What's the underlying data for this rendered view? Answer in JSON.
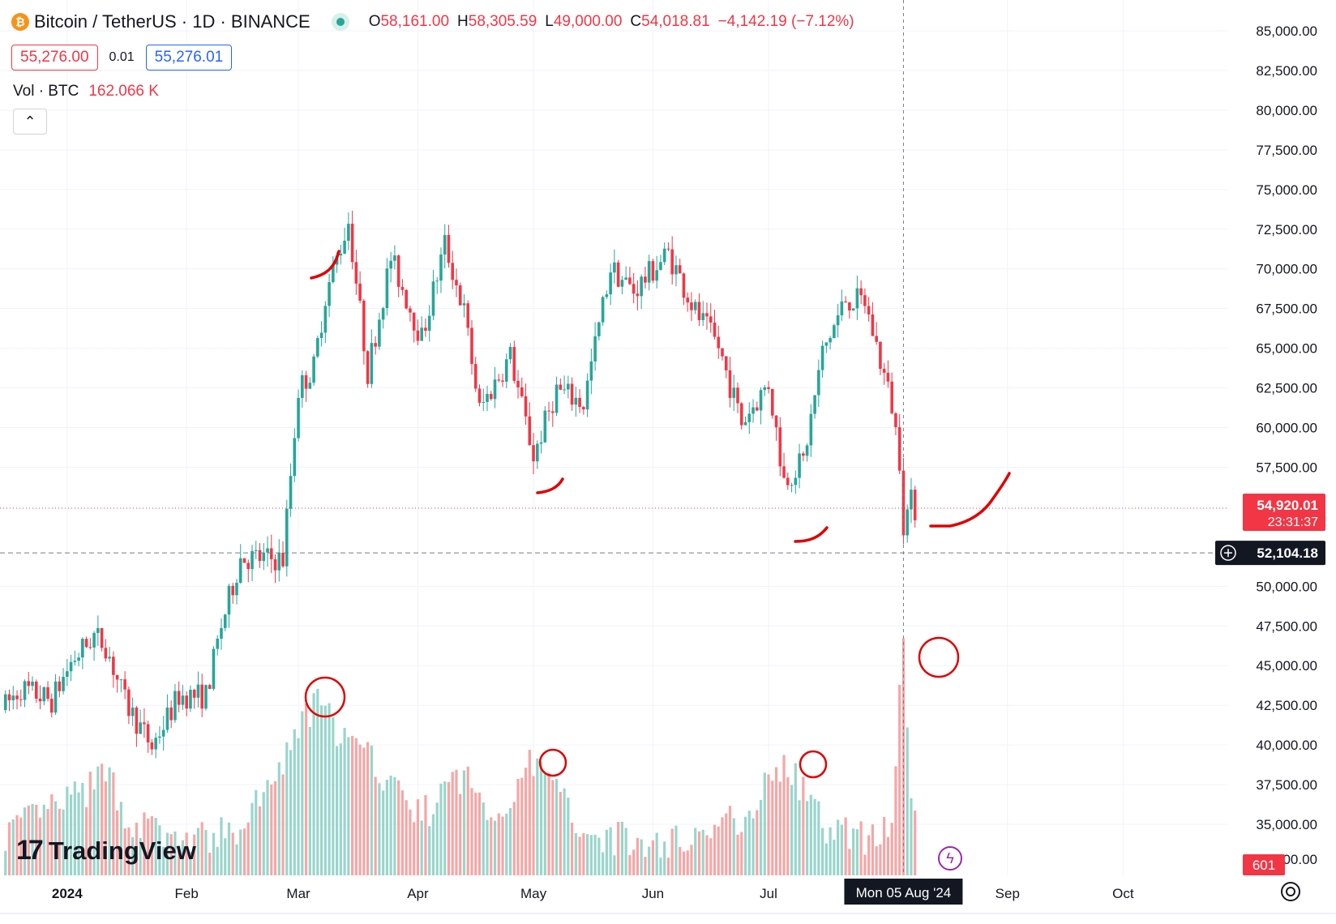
{
  "header": {
    "symbol_title": "Bitcoin / TetherUS · 1D · BINANCE",
    "open_key": "O",
    "open": "58,161.00",
    "high_key": "H",
    "high": "58,305.59",
    "low_key": "L",
    "low": "49,000.00",
    "close_key": "C",
    "close": "54,018.81",
    "change": "−4,142.19 (−7.12%)",
    "sell_price": "55,276.00",
    "spread": "0.01",
    "buy_price": "55,276.01",
    "volume_label": "Vol · BTC",
    "volume_value": "162.066 K",
    "collapse_glyph": "⌃"
  },
  "logo": {
    "mark": "17",
    "name": "TradingView"
  },
  "icons": {
    "coin": "bitcoin-icon",
    "settings": "gear-icon",
    "alert": "lightning-icon",
    "crosshair": "plus-circle-icon"
  },
  "colors": {
    "up": "#26a69a",
    "down": "#f23645",
    "volume_up": "#9ad5cc",
    "volume_down": "#f6a6a6",
    "annotation": "#e00000",
    "grid": "#f0f3fa"
  },
  "chart_data": {
    "type": "candlestick",
    "y_axis": {
      "range": [
        32500,
        85000
      ],
      "ticks": [
        35000,
        37500,
        40000,
        42500,
        45000,
        47500,
        50000,
        57500,
        60000,
        62500,
        65000,
        67500,
        70000,
        72500,
        75000,
        77500,
        80000,
        82500,
        85000
      ],
      "tick_labels": [
        "35,000.00",
        "37,500.00",
        "40,000.00",
        "42,500.00",
        "45,000.00",
        "47,500.00",
        "50,000.00",
        "57,500.00",
        "60,000.00",
        "62,500.00",
        "65,000.00",
        "67,500.00",
        "70,000.00",
        "72,500.00",
        "75,000.00",
        "77,500.00",
        "80,000.00",
        "82,500.00",
        "85,000.00"
      ],
      "partial_bottom_label": "00.00"
    },
    "x_axis": {
      "start": "2023-12-15",
      "end": "2024-10-20",
      "ticks": [
        {
          "date": "2024-01-01",
          "label": "2024"
        },
        {
          "date": "2024-02-01",
          "label": "Feb"
        },
        {
          "date": "2024-03-01",
          "label": "Mar"
        },
        {
          "date": "2024-04-01",
          "label": "Apr"
        },
        {
          "date": "2024-05-01",
          "label": "May"
        },
        {
          "date": "2024-06-01",
          "label": "Jun"
        },
        {
          "date": "2024-07-01",
          "label": "Jul"
        },
        {
          "date": "2024-09-01",
          "label": "Sep"
        },
        {
          "date": "2024-10-01",
          "label": "Oct"
        }
      ],
      "crosshair_date": "2024-08-05",
      "crosshair_label": "Mon 05 Aug '24"
    },
    "price_tags": {
      "last_price": 54920.01,
      "last_price_label": "54,920.01",
      "countdown": "23:31:37",
      "crosshair_price": 52104.18,
      "crosshair_price_label": "52,104.18",
      "volume_tag": "601"
    },
    "close_path": [
      [
        "2023-12-15",
        42200
      ],
      [
        "2023-12-20",
        43600
      ],
      [
        "2023-12-28",
        42800
      ],
      [
        "2024-01-02",
        45200
      ],
      [
        "2024-01-08",
        46900
      ],
      [
        "2024-01-11",
        46300
      ],
      [
        "2024-01-16",
        42700
      ],
      [
        "2024-01-23",
        39900
      ],
      [
        "2024-01-30",
        43100
      ],
      [
        "2024-02-06",
        43100
      ],
      [
        "2024-02-10",
        47500
      ],
      [
        "2024-02-15",
        51800
      ],
      [
        "2024-02-26",
        51700
      ],
      [
        "2024-03-01",
        62400
      ],
      [
        "2024-03-05",
        63800
      ],
      [
        "2024-03-08",
        68300
      ],
      [
        "2024-03-14",
        73000
      ],
      [
        "2024-03-19",
        63500
      ],
      [
        "2024-03-25",
        70700
      ],
      [
        "2024-04-02",
        65600
      ],
      [
        "2024-04-08",
        71600
      ],
      [
        "2024-04-13",
        67300
      ],
      [
        "2024-04-17",
        61100
      ],
      [
        "2024-04-25",
        64500
      ],
      [
        "2024-05-01",
        58200
      ],
      [
        "2024-05-07",
        62400
      ],
      [
        "2024-05-14",
        61500
      ],
      [
        "2024-05-21",
        70100
      ],
      [
        "2024-05-27",
        68600
      ],
      [
        "2024-06-05",
        71000
      ],
      [
        "2024-06-12",
        67300
      ],
      [
        "2024-06-18",
        65100
      ],
      [
        "2024-06-24",
        60300
      ],
      [
        "2024-07-01",
        62800
      ],
      [
        "2024-07-05",
        56700
      ],
      [
        "2024-07-10",
        57900
      ],
      [
        "2024-07-15",
        64700
      ],
      [
        "2024-07-21",
        68100
      ],
      [
        "2024-07-26",
        67900
      ],
      [
        "2024-08-02",
        61400
      ],
      [
        "2024-08-04",
        58100
      ],
      [
        "2024-08-05",
        54000
      ],
      [
        "2024-08-07",
        55300
      ],
      [
        "2024-08-08",
        54920
      ]
    ],
    "volume_path": [
      [
        "2023-12-15",
        28
      ],
      [
        "2024-01-08",
        60
      ],
      [
        "2024-01-11",
        75
      ],
      [
        "2024-01-16",
        40
      ],
      [
        "2024-01-30",
        22
      ],
      [
        "2024-02-15",
        30
      ],
      [
        "2024-02-28",
        85
      ],
      [
        "2024-03-05",
        120
      ],
      [
        "2024-03-14",
        90
      ],
      [
        "2024-03-20",
        78
      ],
      [
        "2024-04-02",
        40
      ],
      [
        "2024-04-13",
        70
      ],
      [
        "2024-04-20",
        38
      ],
      [
        "2024-05-01",
        78
      ],
      [
        "2024-05-15",
        30
      ],
      [
        "2024-06-01",
        20
      ],
      [
        "2024-06-12",
        28
      ],
      [
        "2024-06-24",
        40
      ],
      [
        "2024-07-05",
        78
      ],
      [
        "2024-07-15",
        35
      ],
      [
        "2024-07-26",
        25
      ],
      [
        "2024-08-02",
        40
      ],
      [
        "2024-08-05",
        160
      ],
      [
        "2024-08-07",
        55
      ],
      [
        "2024-08-08",
        35
      ]
    ],
    "reference_lines": [
      {
        "kind": "last-price",
        "value": 54920.01,
        "style": "dotted",
        "color": "#f23645"
      },
      {
        "kind": "crosshair",
        "value": 52104.18,
        "style": "dashed",
        "color": "#787b86"
      }
    ],
    "annotations": {
      "volume_circles": [
        "2024-03-05",
        "2024-05-01",
        "2024-07-05",
        "2024-08-05"
      ],
      "swing_low_arcs": [
        "2024-03-05",
        "2024-05-01",
        "2024-07-05",
        "2024-08-05"
      ]
    }
  }
}
